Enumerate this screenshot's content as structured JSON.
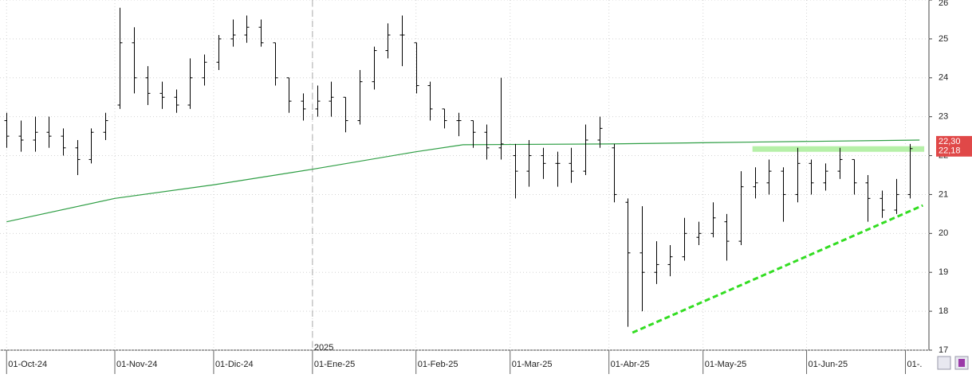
{
  "chart_data": {
    "type": "ohlc",
    "color": "#000000",
    "x": [
      0,
      3,
      6,
      9,
      12,
      15,
      18,
      21,
      24,
      27,
      30,
      33,
      36,
      39,
      42,
      45,
      48,
      51,
      54,
      57,
      60,
      63,
      66,
      69,
      72,
      75,
      78,
      81,
      84,
      87,
      90,
      93,
      96,
      99,
      102,
      105,
      108,
      111,
      114,
      117,
      120,
      123,
      126,
      129,
      132,
      135,
      138,
      141,
      144,
      147,
      150,
      153,
      156,
      159,
      162,
      165,
      168,
      171,
      174,
      177,
      180,
      183,
      186,
      189,
      192
    ],
    "open": [
      22.9,
      22.5,
      22.4,
      22.6,
      22.5,
      22.2,
      21.9,
      22.6,
      23.3,
      24.9,
      24.0,
      23.6,
      23.5,
      23.3,
      24.0,
      24.4,
      25.0,
      25.1,
      25.3,
      24.9,
      24.0,
      23.4,
      23.2,
      23.4,
      23.5,
      22.9,
      23.9,
      24.7,
      25.1,
      24.9,
      23.8,
      23.2,
      22.9,
      22.9,
      22.6,
      22.2,
      22.0,
      21.6,
      22.0,
      21.8,
      21.8,
      21.6,
      22.4,
      22.2,
      20.8,
      19.5,
      19.0,
      19.2,
      19.4,
      19.9,
      20.0,
      20.3,
      19.8,
      21.2,
      21.3,
      21.6,
      21.0,
      21.8,
      21.3,
      21.6,
      21.9,
      21.3,
      20.9,
      20.6,
      21.0
    ],
    "high": [
      23.1,
      22.9,
      23.0,
      23.0,
      22.7,
      22.4,
      22.7,
      23.1,
      25.8,
      25.3,
      24.3,
      23.9,
      23.7,
      24.5,
      24.6,
      25.1,
      25.5,
      25.6,
      25.5,
      24.9,
      24.0,
      23.6,
      23.8,
      23.9,
      23.5,
      24.2,
      24.8,
      25.4,
      25.6,
      24.9,
      23.9,
      23.2,
      23.1,
      22.9,
      22.8,
      24.0,
      22.3,
      22.4,
      22.2,
      22.1,
      22.2,
      22.8,
      23.0,
      22.3,
      20.9,
      20.7,
      19.8,
      19.7,
      20.4,
      20.3,
      20.8,
      20.5,
      21.6,
      21.7,
      21.9,
      21.7,
      22.2,
      21.9,
      21.8,
      22.2,
      21.9,
      21.5,
      21.1,
      21.4,
      22.3
    ],
    "low": [
      22.2,
      22.1,
      22.1,
      22.2,
      22.0,
      21.5,
      21.8,
      22.4,
      23.2,
      23.6,
      23.3,
      23.2,
      23.1,
      23.2,
      23.8,
      24.2,
      24.8,
      24.9,
      24.8,
      23.8,
      23.1,
      22.9,
      23.0,
      23.0,
      22.6,
      22.8,
      23.7,
      24.5,
      24.3,
      23.6,
      22.9,
      22.7,
      22.5,
      22.2,
      21.9,
      21.9,
      20.9,
      21.2,
      21.4,
      21.2,
      21.3,
      21.5,
      22.2,
      20.8,
      17.6,
      18.0,
      18.7,
      18.9,
      19.3,
      19.7,
      19.9,
      19.3,
      19.7,
      20.9,
      21.0,
      20.3,
      20.8,
      21.0,
      21.1,
      21.4,
      21.0,
      20.3,
      20.4,
      20.5,
      20.9
    ],
    "close": [
      22.5,
      22.4,
      22.6,
      22.5,
      22.2,
      21.9,
      22.6,
      22.9,
      24.9,
      24.0,
      23.6,
      23.5,
      23.3,
      24.0,
      24.4,
      25.0,
      25.1,
      25.3,
      24.9,
      24.0,
      23.4,
      23.2,
      23.4,
      23.5,
      22.9,
      23.9,
      24.7,
      25.1,
      25.1,
      23.8,
      23.2,
      22.9,
      22.9,
      22.6,
      22.2,
      22.3,
      21.6,
      22.0,
      21.8,
      21.8,
      21.6,
      22.4,
      22.7,
      21.0,
      19.5,
      19.0,
      19.2,
      19.4,
      20.0,
      20.0,
      20.4,
      19.8,
      21.2,
      21.3,
      21.6,
      21.0,
      21.8,
      21.3,
      21.6,
      21.9,
      21.3,
      20.9,
      20.6,
      21.0,
      22.18
    ],
    "moving_average": {
      "x": [
        0,
        23,
        44,
        65,
        87,
        97,
        128,
        160,
        194
      ],
      "values": [
        20.3,
        20.9,
        21.25,
        21.65,
        22.1,
        22.28,
        22.3,
        22.35,
        22.4
      ],
      "color": "#2e9e44"
    },
    "trendline": {
      "x": [
        133,
        194.7
      ],
      "values": [
        17.45,
        20.72
      ],
      "color": "#33dd22"
    },
    "level_band": {
      "x": [
        158.5,
        195
      ],
      "values": [
        22.17,
        22.17
      ],
      "color": "#b6f0a8"
    },
    "price_labels": [
      {
        "value": 22.3,
        "label": "22,30"
      },
      {
        "value": 22.18,
        "label": "22,18"
      }
    ],
    "year_marker": {
      "value": 65,
      "label": "2025"
    },
    "xlim": [
      -1.4,
      196
    ],
    "ylim": [
      17,
      26
    ],
    "yticks": [
      17,
      18,
      19,
      20,
      21,
      22,
      23,
      24,
      25,
      26
    ],
    "xticks": [
      {
        "value": 0,
        "label": "01-Oct-24"
      },
      {
        "value": 23,
        "label": "01-Nov-24"
      },
      {
        "value": 44,
        "label": "01-Dic-24"
      },
      {
        "value": 65,
        "label": "01-Ene-25"
      },
      {
        "value": 87,
        "label": "01-Feb-25"
      },
      {
        "value": 107,
        "label": "01-Mar-25"
      },
      {
        "value": 128,
        "label": "01-Abr-25"
      },
      {
        "value": 148,
        "label": "01-May-25"
      },
      {
        "value": 170,
        "label": "01-Jun-25"
      },
      {
        "value": 191,
        "label": "01-."
      }
    ],
    "grid": true
  }
}
